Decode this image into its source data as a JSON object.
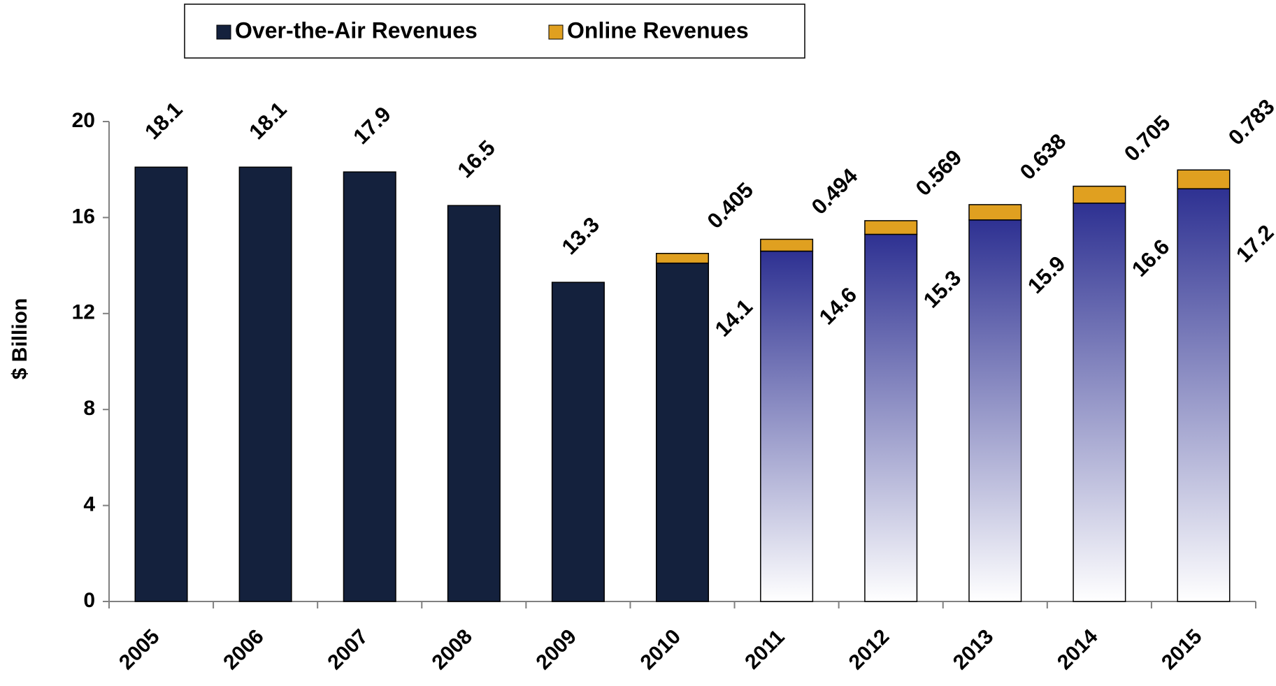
{
  "chart_data": {
    "type": "stacked_bar",
    "categories": [
      "2005",
      "2006",
      "2007",
      "2008",
      "2009",
      "2010",
      "2011",
      "2012",
      "2013",
      "2014",
      "2015"
    ],
    "series": [
      {
        "name": "Over-the-Air Revenues",
        "color": "#14213d",
        "gradient_color": "#2e3192",
        "fill": [
          "solid",
          "solid",
          "solid",
          "solid",
          "solid",
          "solid",
          "gradient",
          "gradient",
          "gradient",
          "gradient",
          "gradient"
        ],
        "values": [
          18.1,
          18.1,
          17.9,
          16.5,
          13.3,
          14.1,
          14.6,
          15.3,
          15.9,
          16.6,
          17.2
        ]
      },
      {
        "name": "Online Revenues",
        "color": "#e0a020",
        "values": [
          null,
          null,
          null,
          null,
          null,
          0.405,
          0.494,
          0.569,
          0.638,
          0.705,
          0.783
        ]
      }
    ],
    "y_label": "$ Billion",
    "ylim": [
      0,
      20
    ],
    "yticks": [
      0,
      4,
      8,
      12,
      16,
      20
    ],
    "legend": "top"
  }
}
